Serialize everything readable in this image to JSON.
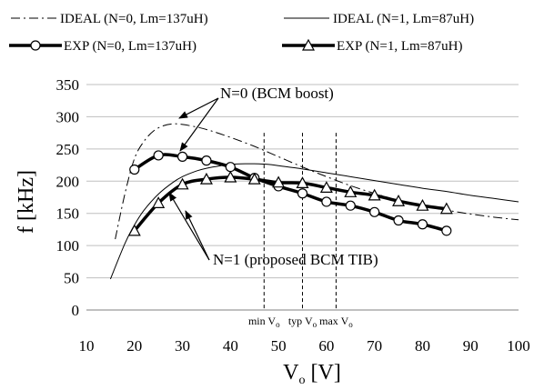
{
  "chart_data": {
    "type": "line",
    "xlabel": "V",
    "xlabel_sub": "o",
    "xlabel_unit": "[V]",
    "ylabel": "f [kHz]",
    "xlim": [
      10,
      100
    ],
    "ylim": [
      0,
      350
    ],
    "xticks": [
      10,
      20,
      30,
      40,
      50,
      60,
      70,
      80,
      90,
      100
    ],
    "yticks": [
      0,
      50,
      100,
      150,
      200,
      250,
      300,
      350
    ],
    "grid": "horizontal",
    "legend_position": "top",
    "series": [
      {
        "name": "IDEAL (N=0, Lm=137uH)",
        "style": "dash-dot",
        "marker": "none",
        "x": [
          16,
          18,
          20,
          22,
          24,
          26,
          28,
          30,
          33,
          36,
          40,
          45,
          50,
          55,
          60,
          65,
          70,
          75,
          80,
          85,
          90,
          95,
          100
        ],
        "y": [
          110,
          180,
          235,
          262,
          278,
          286,
          289,
          288,
          284,
          278,
          268,
          254,
          238,
          222,
          207,
          193,
          181,
          170,
          162,
          155,
          149,
          144,
          140
        ]
      },
      {
        "name": "IDEAL (N=1, Lm=87uH)",
        "style": "solid-thin",
        "marker": "none",
        "x": [
          15,
          18,
          20,
          22,
          25,
          28,
          30,
          33,
          35,
          38,
          40,
          43,
          45,
          48,
          50,
          55,
          60,
          65,
          70,
          75,
          80,
          85,
          90,
          95,
          100
        ],
        "y": [
          48,
          103,
          132,
          155,
          180,
          198,
          207,
          216,
          220,
          224,
          226,
          227,
          227,
          226,
          224,
          219,
          213,
          207,
          201,
          195,
          189,
          184,
          178,
          173,
          168
        ]
      },
      {
        "name": "EXP (N=0, Lm=137uH)",
        "style": "solid-thick",
        "marker": "circle",
        "x": [
          20,
          25,
          30,
          35,
          40,
          45,
          50,
          55,
          60,
          65,
          70,
          75,
          80,
          85
        ],
        "y": [
          218,
          240,
          238,
          232,
          222,
          205,
          192,
          181,
          168,
          162,
          152,
          139,
          133,
          123
        ]
      },
      {
        "name": "EXP (N=1, Lm=87uH)",
        "style": "solid-thick",
        "marker": "triangle",
        "x": [
          20,
          25,
          30,
          35,
          40,
          45,
          50,
          55,
          60,
          65,
          70,
          75,
          80,
          85
        ],
        "y": [
          123,
          166,
          195,
          203,
          206,
          203,
          198,
          197,
          190,
          183,
          178,
          169,
          162,
          157
        ]
      }
    ],
    "vmarkers": [
      {
        "x": 47,
        "label": "min V",
        "sub": "o"
      },
      {
        "x": 55,
        "label": "typ V",
        "sub": "o"
      },
      {
        "x": 62,
        "label": "max V",
        "sub": "o"
      }
    ],
    "annotations": [
      {
        "text": "N=0 (BCM boost)"
      },
      {
        "text": "N=1 (proposed BCM TIB)"
      }
    ]
  }
}
